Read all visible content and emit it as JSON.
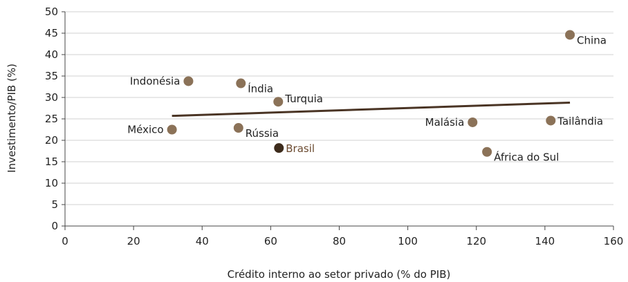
{
  "chart_data": {
    "type": "scatter",
    "xlabel": "Crédito interno ao setor privado (% do PIB)",
    "ylabel": "Investimento/PIB (%)",
    "xlim": [
      0,
      160
    ],
    "ylim": [
      0,
      50
    ],
    "x_ticks": [
      0,
      20,
      40,
      60,
      80,
      100,
      120,
      140,
      160
    ],
    "y_ticks": [
      0,
      5,
      10,
      15,
      20,
      25,
      30,
      35,
      40,
      45,
      50
    ],
    "grid": "horizontal",
    "points": [
      {
        "label": "Indonésia",
        "x": 36,
        "y": 33.8,
        "label_side": "left"
      },
      {
        "label": "Índia",
        "x": 51.3,
        "y": 33.3,
        "label_side": "right-below"
      },
      {
        "label": "Turquia",
        "x": 62.2,
        "y": 29.0,
        "label_side": "right-above"
      },
      {
        "label": "México",
        "x": 31.2,
        "y": 22.5,
        "label_side": "left"
      },
      {
        "label": "Rússia",
        "x": 50.6,
        "y": 22.9,
        "label_side": "right-below"
      },
      {
        "label": "Brasil",
        "x": 62.4,
        "y": 18.2,
        "label_side": "right",
        "highlight": true
      },
      {
        "label": "Malásia",
        "x": 118.9,
        "y": 24.2,
        "label_side": "left"
      },
      {
        "label": "Tailândia",
        "x": 141.7,
        "y": 24.6,
        "label_side": "right"
      },
      {
        "label": "África do Sul",
        "x": 123.1,
        "y": 17.3,
        "label_side": "right-below"
      },
      {
        "label": "China",
        "x": 147.3,
        "y": 44.6,
        "label_side": "right-below"
      }
    ],
    "trendline": {
      "x": [
        31.2,
        147.3
      ],
      "y": [
        25.7,
        28.8
      ]
    },
    "colors": {
      "point": "#8b7258",
      "highlight_point": "#3d2b1c",
      "highlight_label": "#6b4a30",
      "trendline": "#4a3424",
      "grid": "#d0d0d0",
      "axis": "#444444"
    }
  }
}
